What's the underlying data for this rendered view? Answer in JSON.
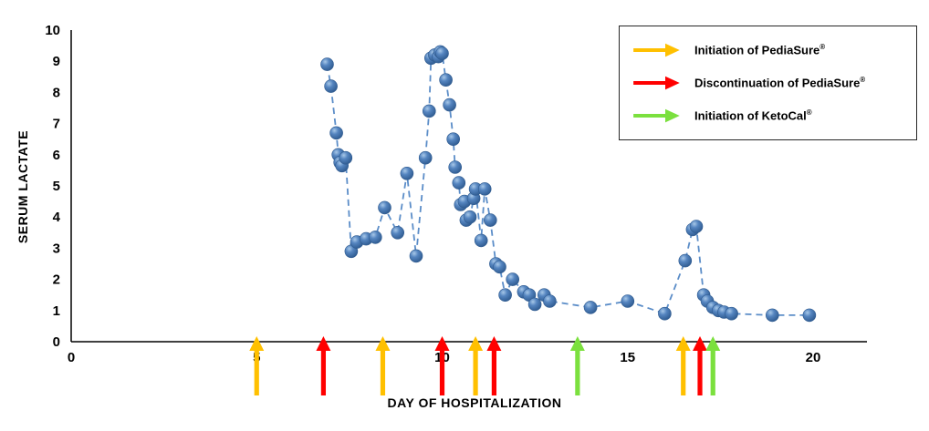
{
  "chart_data": {
    "type": "scatter",
    "title": "",
    "xlabel": "DAY OF HOSPITALIZATION",
    "ylabel": "SERUM LACTATE",
    "xlim": [
      0,
      20
    ],
    "ylim": [
      0,
      10
    ],
    "x_ticks": [
      0,
      5,
      10,
      15,
      20
    ],
    "y_ticks": [
      0,
      1,
      2,
      3,
      4,
      5,
      6,
      7,
      8,
      9,
      10
    ],
    "grid": false,
    "legend_position": "top-right",
    "marker_color": "#4F81BD",
    "marker_edge_color": "#2E5A8F",
    "line_color": "#5B8DC8",
    "points": [
      [
        6.9,
        8.9
      ],
      [
        7.0,
        8.2
      ],
      [
        7.15,
        6.7
      ],
      [
        7.2,
        6.0
      ],
      [
        7.25,
        5.75
      ],
      [
        7.3,
        5.65
      ],
      [
        7.4,
        5.9
      ],
      [
        7.55,
        2.9
      ],
      [
        7.7,
        3.2
      ],
      [
        7.95,
        3.3
      ],
      [
        8.2,
        3.35
      ],
      [
        8.45,
        4.3
      ],
      [
        8.8,
        3.5
      ],
      [
        9.05,
        5.4
      ],
      [
        9.3,
        2.75
      ],
      [
        9.55,
        5.9
      ],
      [
        9.65,
        7.4
      ],
      [
        9.7,
        9.1
      ],
      [
        9.8,
        9.2
      ],
      [
        9.9,
        9.15
      ],
      [
        9.95,
        9.3
      ],
      [
        10.0,
        9.25
      ],
      [
        10.1,
        8.4
      ],
      [
        10.2,
        7.6
      ],
      [
        10.3,
        6.5
      ],
      [
        10.35,
        5.6
      ],
      [
        10.45,
        5.1
      ],
      [
        10.5,
        4.4
      ],
      [
        10.6,
        4.5
      ],
      [
        10.65,
        3.9
      ],
      [
        10.75,
        4.0
      ],
      [
        10.85,
        4.6
      ],
      [
        10.9,
        4.9
      ],
      [
        11.05,
        3.25
      ],
      [
        11.15,
        4.9
      ],
      [
        11.3,
        3.9
      ],
      [
        11.45,
        2.5
      ],
      [
        11.55,
        2.4
      ],
      [
        11.7,
        1.5
      ],
      [
        11.9,
        2.0
      ],
      [
        12.2,
        1.6
      ],
      [
        12.35,
        1.5
      ],
      [
        12.5,
        1.2
      ],
      [
        12.75,
        1.5
      ],
      [
        12.9,
        1.3
      ],
      [
        14.0,
        1.1
      ],
      [
        15.0,
        1.3
      ],
      [
        16.0,
        0.9
      ],
      [
        16.55,
        2.6
      ],
      [
        16.75,
        3.6
      ],
      [
        16.85,
        3.7
      ],
      [
        17.05,
        1.5
      ],
      [
        17.15,
        1.3
      ],
      [
        17.3,
        1.1
      ],
      [
        17.45,
        1.0
      ],
      [
        17.6,
        0.95
      ],
      [
        17.8,
        0.9
      ],
      [
        18.9,
        0.85
      ],
      [
        19.9,
        0.85
      ]
    ],
    "events": [
      {
        "x": 5.0,
        "type": "initiation-pediasure",
        "color": "#FFC000"
      },
      {
        "x": 6.8,
        "type": "discontinuation-pediasure",
        "color": "#FF0000"
      },
      {
        "x": 8.4,
        "type": "initiation-pediasure",
        "color": "#FFC000"
      },
      {
        "x": 10.0,
        "type": "discontinuation-pediasure",
        "color": "#FF0000"
      },
      {
        "x": 10.9,
        "type": "initiation-pediasure",
        "color": "#FFC000"
      },
      {
        "x": 11.4,
        "type": "discontinuation-pediasure",
        "color": "#FF0000"
      },
      {
        "x": 13.65,
        "type": "initiation-ketocal",
        "color": "#7BE03E"
      },
      {
        "x": 16.5,
        "type": "initiation-pediasure",
        "color": "#FFC000"
      },
      {
        "x": 16.95,
        "type": "discontinuation-pediasure",
        "color": "#FF0000"
      },
      {
        "x": 17.3,
        "type": "initiation-ketocal",
        "color": "#7BE03E"
      }
    ],
    "legend": [
      {
        "label": "Initiation of PediaSure",
        "reg": "®",
        "color": "#FFC000"
      },
      {
        "label": "Discontinuation of PediaSure",
        "reg": "®",
        "color": "#FF0000"
      },
      {
        "label": "Initiation of KetoCal",
        "reg": "®",
        "color": "#7BE03E"
      }
    ]
  }
}
